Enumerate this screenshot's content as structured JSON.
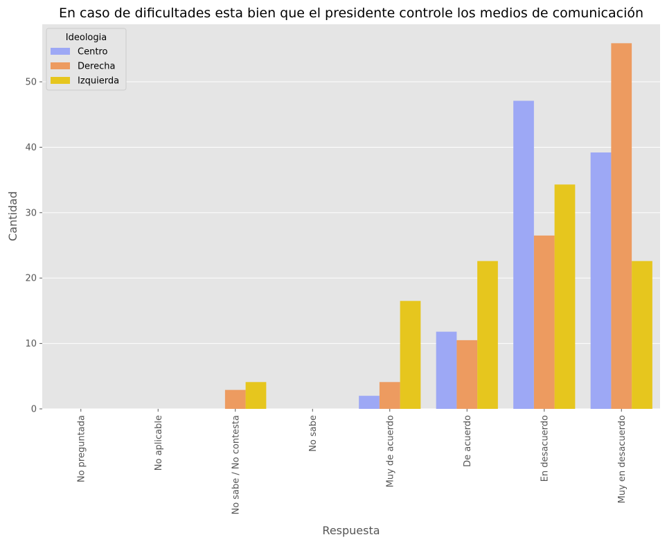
{
  "chart_data": {
    "type": "bar",
    "title": "En caso de dificultades esta bien que el presidente controle los medios de comunicación",
    "xlabel": "Respuesta",
    "ylabel": "Cantidad",
    "ylim": [
      0,
      58.8
    ],
    "yticks": [
      0,
      10,
      20,
      30,
      40,
      50
    ],
    "grid": true,
    "legend": {
      "title": "Ideologia",
      "placement": "top-left"
    },
    "categories": [
      "No preguntada",
      "No aplicable",
      "No sabe / No contesta",
      "No sabe",
      "Muy de acuerdo",
      "De acuerdo",
      "En desacuerdo",
      "Muy en desacuerdo"
    ],
    "series": [
      {
        "name": "Centro",
        "color": "#9da8f5",
        "values": [
          0,
          0,
          0,
          0,
          2.0,
          11.8,
          47.1,
          39.2
        ]
      },
      {
        "name": "Derecha",
        "color": "#ed9b60",
        "values": [
          0,
          0,
          2.9,
          0,
          4.1,
          10.5,
          26.5,
          55.9
        ]
      },
      {
        "name": "Izquierda",
        "color": "#e6c61e",
        "values": [
          0,
          0,
          4.1,
          0,
          16.5,
          22.6,
          34.3,
          22.6
        ]
      }
    ],
    "colors": {
      "plot_background": "#e5e5e5",
      "grid": "#ffffff"
    }
  }
}
